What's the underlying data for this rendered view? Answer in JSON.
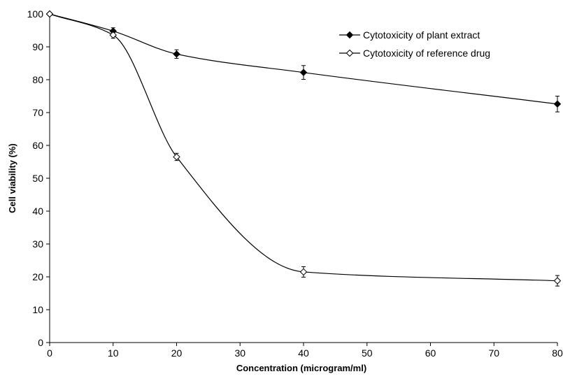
{
  "chart_data": {
    "type": "line",
    "title": "",
    "xlabel": "Concentration (microgram/ml)",
    "ylabel": "Cell viability (%)",
    "xlim": [
      0,
      80
    ],
    "ylim": [
      0,
      100
    ],
    "x_ticks": [
      0,
      10,
      20,
      30,
      40,
      50,
      60,
      70,
      80
    ],
    "y_ticks": [
      0,
      10,
      20,
      30,
      40,
      50,
      60,
      70,
      80,
      90,
      100
    ],
    "grid": false,
    "legend_position": "top-right",
    "smooth": true,
    "series": [
      {
        "name": "Cytotoxicity of plant extract",
        "marker": "filled-diamond",
        "color": "#000000",
        "x": [
          0,
          10,
          20,
          40,
          80
        ],
        "y": [
          100,
          94.8,
          87.8,
          82.2,
          72.6
        ],
        "error": [
          0.4,
          1.0,
          1.3,
          2.1,
          2.4
        ]
      },
      {
        "name": "Cytotoxicity of reference drug",
        "marker": "open-diamond",
        "color": "#000000",
        "x": [
          0,
          10,
          20,
          40,
          80
        ],
        "y": [
          100,
          93.6,
          56.5,
          21.5,
          18.8
        ],
        "error": [
          0.4,
          1.0,
          1.1,
          1.6,
          1.6
        ]
      }
    ]
  }
}
